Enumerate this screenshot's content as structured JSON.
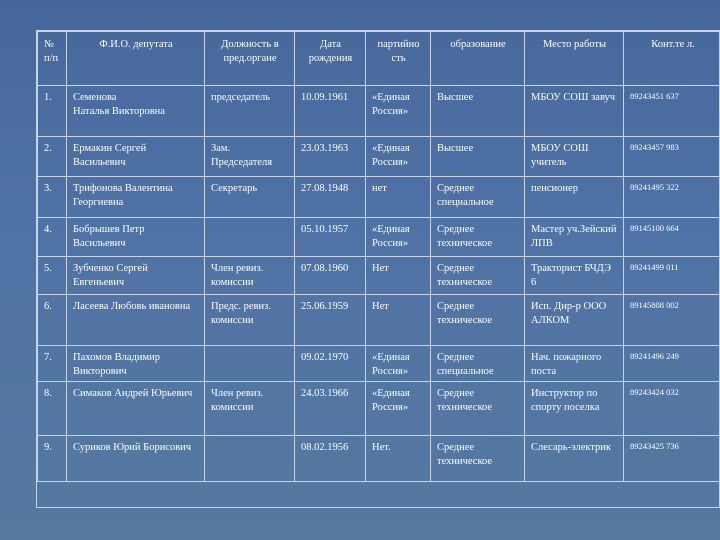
{
  "headers": {
    "no": "№ п/п",
    "fio": "Ф.И.О. депутата",
    "position": "Должность в пред.органе",
    "birth": "Дата рождения",
    "party": "партийно сть",
    "education": "образование",
    "work": "Место работы",
    "phone": "Конт.те л."
  },
  "rows": [
    {
      "no": "1.",
      "fio": "Семенова\nНаталья Викторовна",
      "position": "председатель",
      "birth": "10.09.1961",
      "party": "«Единая Россия»",
      "education": "Высшее",
      "work": "МБОУ СОШ завуч",
      "phone": "89243451 637"
    },
    {
      "no": "2.",
      "fio": "Ермакин Сергей Васильевич",
      "position": "Зам. Председателя",
      "birth": "23.03.1963",
      "party": "«Единая Россия»",
      "education": "Высшее",
      "work": "МБОУ СОШ учитель",
      "phone": "89243457 983"
    },
    {
      "no": "3.",
      "fio": "Трифонова Валентина Георгиевна",
      "position": "Секретарь",
      "birth": "27.08.1948",
      "party": "нет",
      "education": "Среднее специальное",
      "work": "пенсионер",
      "phone": "89241495 322"
    },
    {
      "no": "4.",
      "fio": "Бобрышев Петр Васильевич",
      "position": "",
      "birth": "05.10.1957",
      "party": "«Единая Россия»",
      "education": "Среднее техническое",
      "work": "Мастер уч.Зейский ЛПВ",
      "phone": "89145100 664"
    },
    {
      "no": "5.",
      "fio": "Зубченко Сергей Евгеньевич",
      "position": "Член ревиз. комиссии",
      "birth": "07.08.1960",
      "party": "Нет",
      "education": "Среднее техническое",
      "work": "Тракторист БЧДЭ 6",
      "phone": "89241499 011"
    },
    {
      "no": "6.",
      "fio": "Ласеева Любовь ивановна",
      "position": "Предс. ревиз. комиссии",
      "birth": "25.06.1959",
      "party": "Нет",
      "education": "Среднее техническое",
      "work": "Исп. Дир-р ООО АЛКОМ",
      "phone": "89145808 002"
    },
    {
      "no": "7.",
      "fio": "Пахомов Владимир Викторович",
      "position": "",
      "birth": "09.02.1970",
      "party": "«Единая Россия»",
      "education": "Среднее специальное",
      "work": "Нач. пожарного поста",
      "phone": "89241496 249"
    },
    {
      "no": "8.",
      "fio": "Симаков Андрей Юрьевич",
      "position": "Член ревиз. комиссии",
      "birth": "24.03.1966",
      "party": "«Единая Россия»",
      "education": "Среднее техническое",
      "work": "Инструктор по спорту поселка",
      "phone": "89243424 032"
    },
    {
      "no": "9.",
      "fio": "Суриков Юрий Борисович",
      "position": "",
      "birth": "08.02.1956",
      "party": "Нет.",
      "education": "Среднее техническое",
      "work": "Слесарь-электрик",
      "phone": "89243425 736"
    }
  ]
}
